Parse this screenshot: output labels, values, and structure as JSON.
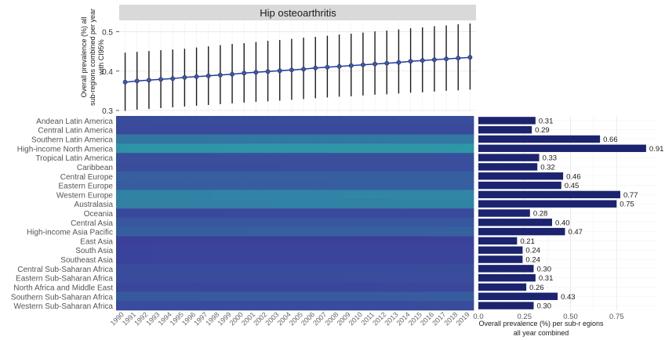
{
  "chart_data": [
    {
      "type": "line",
      "title": "Hip osteoarthritis",
      "ylabel": "Overall prevalence (%) all sub-regions combined per year with CI95%",
      "ylabel_lines": [
        "Overall prevalence (%) all",
        "sub-regions combined per year",
        "with CI95%"
      ],
      "ylim": [
        0.29,
        0.525
      ],
      "yticks": [
        0.3,
        0.4,
        0.5
      ],
      "ytick_labels": [
        "0.3",
        "0.4",
        "0.5"
      ],
      "x": [
        1990,
        1991,
        1992,
        1993,
        1994,
        1995,
        1996,
        1997,
        1998,
        1999,
        2000,
        2001,
        2002,
        2003,
        2004,
        2005,
        2006,
        2007,
        2008,
        2009,
        2010,
        2011,
        2012,
        2013,
        2014,
        2015,
        2016,
        2017,
        2018,
        2019
      ],
      "x_labels": [
        "1990",
        "1991",
        "1992",
        "1993",
        "1994",
        "1995",
        "1996",
        "1997",
        "1998",
        "1999",
        "2000",
        "2001",
        "2002",
        "2003",
        "2004",
        "2005",
        "2006",
        "2007",
        "2008",
        "2009",
        "2010",
        "2011",
        "2012",
        "2013",
        "2014",
        "2015",
        "2016",
        "2017",
        "2018",
        "2019"
      ],
      "y": [
        0.372,
        0.375,
        0.377,
        0.379,
        0.381,
        0.384,
        0.386,
        0.388,
        0.39,
        0.392,
        0.395,
        0.397,
        0.399,
        0.401,
        0.403,
        0.405,
        0.408,
        0.41,
        0.412,
        0.414,
        0.416,
        0.418,
        0.42,
        0.422,
        0.425,
        0.427,
        0.429,
        0.431,
        0.433,
        0.435
      ],
      "lower": [
        0.299,
        0.302,
        0.304,
        0.306,
        0.308,
        0.31,
        0.312,
        0.314,
        0.316,
        0.318,
        0.32,
        0.322,
        0.323,
        0.325,
        0.327,
        0.329,
        0.331,
        0.333,
        0.335,
        0.336,
        0.338,
        0.34,
        0.341,
        0.343,
        0.345,
        0.346,
        0.348,
        0.35,
        0.351,
        0.353
      ],
      "upper": [
        0.447,
        0.449,
        0.451,
        0.453,
        0.455,
        0.457,
        0.46,
        0.463,
        0.466,
        0.469,
        0.471,
        0.474,
        0.477,
        0.479,
        0.482,
        0.485,
        0.487,
        0.49,
        0.493,
        0.495,
        0.498,
        0.501,
        0.503,
        0.506,
        0.509,
        0.511,
        0.514,
        0.516,
        0.519,
        0.521
      ],
      "grid": true,
      "colors": {
        "strip": "#d9d9d9",
        "line": "#243a8f",
        "point": "#3a5aa8",
        "errorbar": "#1a1a1a",
        "grid": "#e6e6e6"
      }
    },
    {
      "type": "heatmap",
      "rows": [
        "Andean Latin America",
        "Central Latin America",
        "Southern Latin America",
        "High-income North America",
        "Tropical Latin America",
        "Caribbean",
        "Central Europe",
        "Eastern Europe",
        "Western Europe",
        "Australasia",
        "Oceania",
        "Central Asia",
        "High-income Asia Pacific",
        "East Asia",
        "South Asia",
        "Southeast Asia",
        "Central Sub-Saharan Africa",
        "Eastern Sub-Saharan Africa",
        "North Africa and Middle East",
        "Southern Sub-Saharan Africa",
        "Western Sub-Saharan Africa"
      ],
      "columns": [
        1990,
        1991,
        1992,
        1993,
        1994,
        1995,
        1996,
        1997,
        1998,
        1999,
        2000,
        2001,
        2002,
        2003,
        2004,
        2005,
        2006,
        2007,
        2008,
        2009,
        2010,
        2011,
        2012,
        2013,
        2014,
        2015,
        2016,
        2017,
        2018,
        2019
      ],
      "row_values": [
        0.31,
        0.29,
        0.66,
        0.91,
        0.33,
        0.32,
        0.46,
        0.45,
        0.77,
        0.75,
        0.28,
        0.4,
        0.47,
        0.21,
        0.24,
        0.24,
        0.3,
        0.31,
        0.26,
        0.43,
        0.3
      ],
      "value_range": [
        0.2,
        0.95
      ],
      "colors": {
        "low": "#3b3f9a",
        "high": "#2e9aa8"
      }
    },
    {
      "type": "bar",
      "orientation": "horizontal",
      "categories": [
        "Andean Latin America",
        "Central Latin America",
        "Southern Latin America",
        "High-income North America",
        "Tropical Latin America",
        "Caribbean",
        "Central Europe",
        "Eastern Europe",
        "Western Europe",
        "Australasia",
        "Oceania",
        "Central Asia",
        "High-income Asia Pacific",
        "East Asia",
        "South Asia",
        "Southeast Asia",
        "Central Sub-Saharan Africa",
        "Eastern Sub-Saharan Africa",
        "North Africa and Middle East",
        "Southern Sub-Saharan Africa",
        "Western Sub-Saharan Africa"
      ],
      "values": [
        0.31,
        0.29,
        0.66,
        0.91,
        0.33,
        0.32,
        0.46,
        0.45,
        0.77,
        0.75,
        0.28,
        0.4,
        0.47,
        0.21,
        0.24,
        0.24,
        0.3,
        0.31,
        0.26,
        0.43,
        0.3
      ],
      "value_labels": [
        "0.31",
        "0.29",
        "0.66",
        "0.91",
        "0.33",
        "0.32",
        "0.46",
        "0.45",
        "0.77",
        "0.75",
        "0.28",
        "0.40",
        "0.47",
        "0.21",
        "0.24",
        "0.24",
        "0.30",
        "0.31",
        "0.26",
        "0.43",
        "0.30"
      ],
      "xlabel": "Overall prevalence (%) per sub-r egions all year combined",
      "xlabel_lines": [
        "Overall prevalence (%) per sub-r egions",
        "all year combined"
      ],
      "xlim": [
        0,
        0.97
      ],
      "xticks": [
        0,
        0.25,
        0.5,
        0.75
      ],
      "xtick_labels": [
        "0.0",
        "0.25",
        "0.50",
        "0.75"
      ],
      "grid": true,
      "colors": {
        "bar": "#1c2470",
        "grid": "#e6e6e6"
      }
    }
  ]
}
